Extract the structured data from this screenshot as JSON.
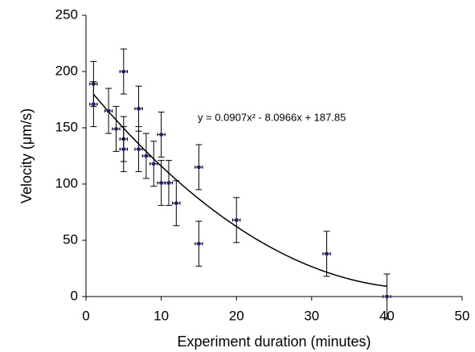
{
  "chart_data": {
    "type": "scatter",
    "x_label": "Experiment duration (minutes)",
    "y_label": "Velocity (μm/s)",
    "xlim": [
      0,
      50
    ],
    "xticks": [
      0,
      10,
      20,
      30,
      40,
      50
    ],
    "ylim": [
      0,
      250
    ],
    "yticks": [
      0,
      50,
      100,
      150,
      200,
      250
    ],
    "grid": false,
    "series": [
      {
        "color": "#1a1a8c",
        "x": [
          1,
          1,
          3,
          4,
          5,
          5,
          5,
          7,
          7,
          8,
          9,
          10,
          10,
          11,
          12,
          15,
          15,
          20,
          32,
          40
        ],
        "values": [
          189,
          171,
          165,
          149,
          200,
          140,
          131,
          167,
          131,
          125,
          118,
          144,
          101,
          101,
          83,
          115,
          47,
          68,
          38,
          0
        ],
        "yerr": [
          20,
          20,
          20,
          20,
          20,
          20,
          20,
          20,
          20,
          20,
          20,
          20,
          20,
          20,
          20,
          20,
          20,
          20,
          20,
          20
        ],
        "xerr": [
          0.5,
          0.5,
          0.5,
          0.5,
          0.5,
          0.5,
          0.5,
          0.5,
          0.5,
          0.5,
          0.5,
          0.5,
          0.5,
          0.5,
          0.5,
          0.5,
          0.5,
          0.5,
          0.5,
          0.5
        ]
      }
    ],
    "trendline": {
      "label": "y = 0.0907x² - 8.0966x + 187.85",
      "coefficients": [
        0.0907,
        -8.0966,
        187.85
      ],
      "x_range": [
        1,
        40
      ],
      "color": "#000000"
    }
  }
}
